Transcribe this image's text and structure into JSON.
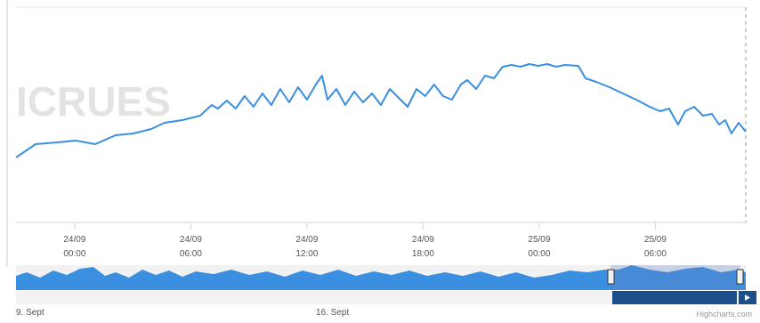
{
  "chart_data": {
    "type": "line",
    "watermark": "ICRUES",
    "credit": "Highcharts.com",
    "navigator_labels": [
      "9. Sept",
      "16. Sept"
    ],
    "series": [
      {
        "color": "#3a8fe0",
        "x": [
          -3.03,
          -2.02,
          -0.87,
          0.05,
          1.06,
          2.11,
          3.03,
          3.95,
          4.64,
          5.56,
          6.48,
          7.08,
          7.4,
          7.86,
          8.32,
          8.78,
          9.24,
          9.7,
          10.16,
          10.62,
          11.08,
          11.54,
          12.0,
          12.46,
          12.78,
          13.06,
          13.52,
          13.98,
          14.44,
          14.9,
          15.36,
          15.82,
          16.28,
          16.74,
          17.2,
          17.66,
          18.11,
          18.57,
          19.03,
          19.49,
          19.95,
          20.28,
          20.74,
          21.2,
          21.66,
          22.11,
          22.57,
          23.03,
          23.49,
          23.95,
          24.41,
          24.87,
          25.33,
          26.02,
          26.39,
          26.94,
          27.63,
          28.32,
          29.01,
          29.7,
          30.25,
          30.71,
          31.17,
          31.54,
          32.0,
          32.46,
          32.92,
          33.29,
          33.61,
          33.93,
          34.3,
          34.67
        ],
        "values": [
          73,
          88,
          90,
          92,
          88,
          98,
          100,
          105,
          112,
          115,
          120,
          132,
          128,
          137,
          128,
          142,
          130,
          145,
          132,
          150,
          135,
          152,
          138,
          155,
          165,
          138,
          150,
          132,
          147,
          135,
          145,
          132,
          150,
          140,
          130,
          150,
          142,
          155,
          142,
          138,
          155,
          160,
          150,
          165,
          162,
          175,
          177,
          175,
          178,
          176,
          178,
          175,
          177,
          176,
          162,
          158,
          152,
          145,
          138,
          130,
          125,
          128,
          110,
          125,
          130,
          120,
          122,
          110,
          115,
          100,
          112,
          102
        ]
      }
    ],
    "xlim": [
      -3.03,
      34.67
    ],
    "ylim": [
      0,
      240
    ],
    "xticks": [
      {
        "value": 0,
        "label": "24/09\n00:00"
      },
      {
        "value": 6,
        "label": "24/09\n06:00"
      },
      {
        "value": 12,
        "label": "24/09\n12:00"
      },
      {
        "value": 18,
        "label": "24/09\n18:00"
      },
      {
        "value": 24,
        "label": "25/09\n00:00"
      },
      {
        "value": 30,
        "label": "25/09\n06:00"
      }
    ]
  }
}
